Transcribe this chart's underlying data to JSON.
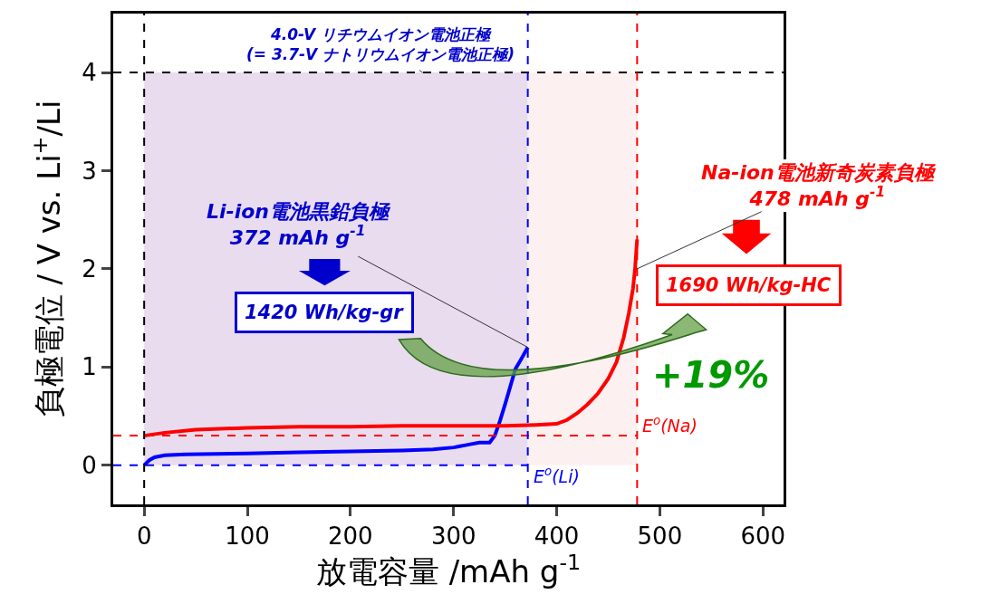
{
  "chart_data": {
    "type": "line",
    "xlabel": "放電容量 /mAh g$^{-1}$",
    "ylabel": "負極電位 / V vs. Li$^{+}$/Li",
    "xlim": [
      -30,
      620
    ],
    "xticks": [
      0,
      100,
      200,
      300,
      400,
      500,
      600
    ],
    "ylim": [
      -0.4,
      4.6
    ],
    "yticks": [
      0,
      1,
      2,
      3,
      4
    ],
    "marker": "none",
    "line_style": "solid",
    "series": [
      {
        "color": "#0000ff",
        "x": [
          0,
          5,
          10,
          20,
          40,
          100,
          150,
          200,
          250,
          280,
          300,
          315,
          325,
          335,
          340,
          345,
          350,
          355,
          360,
          365,
          372
        ],
        "values": [
          0,
          0.05,
          0.08,
          0.1,
          0.11,
          0.12,
          0.13,
          0.14,
          0.15,
          0.16,
          0.18,
          0.21,
          0.23,
          0.23,
          0.3,
          0.45,
          0.62,
          0.8,
          0.98,
          1.07,
          1.2
        ]
      },
      {
        "color": "#ff0000",
        "x": [
          0,
          20,
          50,
          100,
          150,
          200,
          250,
          300,
          350,
          380,
          400,
          410,
          420,
          430,
          440,
          450,
          458,
          465,
          470,
          474,
          476,
          478
        ],
        "values": [
          0.3,
          0.33,
          0.36,
          0.38,
          0.39,
          0.39,
          0.4,
          0.4,
          0.4,
          0.41,
          0.42,
          0.46,
          0.53,
          0.62,
          0.73,
          0.88,
          1.05,
          1.3,
          1.55,
          1.8,
          2.0,
          2.3
        ]
      }
    ],
    "ref_lines": [
      {
        "axis": "y",
        "value": 4,
        "color": "#000000",
        "line_style": "dashed"
      },
      {
        "axis": "y",
        "value": 0,
        "color": "#0000ff",
        "line_style": "dashed",
        "label": "E$^{o}$(Li)"
      },
      {
        "axis": "y",
        "value": 0.3,
        "color": "#ff0000",
        "line_style": "dashed",
        "label": "E$^{o}$(Na)"
      },
      {
        "axis": "x",
        "value": 0,
        "color": "#000000",
        "line_style": "dashed"
      },
      {
        "axis": "x",
        "value": 372,
        "color": "#0000ff",
        "line_style": "dashed"
      },
      {
        "axis": "x",
        "value": 478,
        "color": "#ff0000",
        "line_style": "dashed"
      }
    ],
    "bands": [
      {
        "axis": "x",
        "from": 0,
        "to": 372,
        "color": "#e8dcee"
      },
      {
        "axis": "x",
        "from": 372,
        "to": 478,
        "color": "#fdf0f0"
      }
    ],
    "annotations": [
      {
        "text": "4.0-V リチウムイオン電池正極\n(= 3.7-V ナトリウムイオン電池正極)",
        "x": 270,
        "y": 4
      },
      {
        "text": "Li-ion電池黒鉛負極\n372 mAh g$^{-1}$",
        "x": 372,
        "y": 1.2
      },
      "1420 Wh/kg-gr",
      {
        "text": "Na-ion電池新奇炭素負極\n478 mAh g$^{-1}$",
        "x": 478,
        "y": 2.0
      },
      "1690 Wh/kg-HC",
      "+19%"
    ]
  }
}
